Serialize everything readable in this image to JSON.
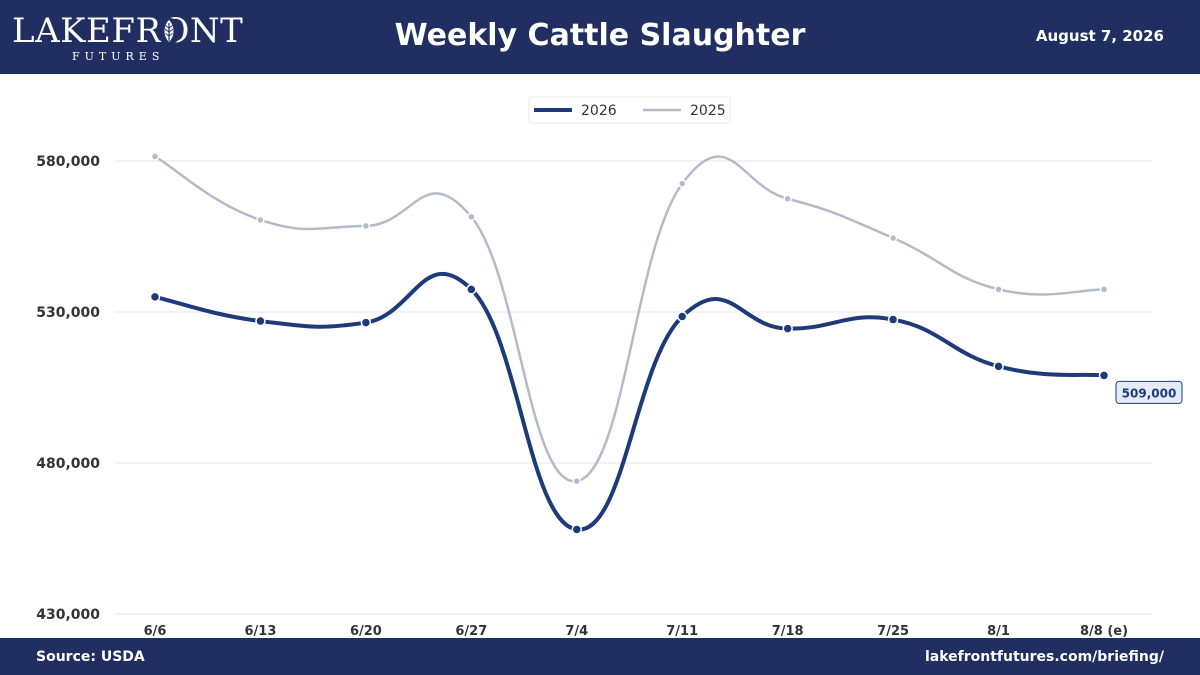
{
  "header": {
    "logo_main": "LAKEFRONT",
    "logo_sub": "FUTURES",
    "title": "Weekly Cattle Slaughter",
    "date": "August 7, 2026"
  },
  "footer": {
    "source": "Source: USDA",
    "site": "lakefrontfutures.com/briefing/"
  },
  "colors": {
    "navy": "#212e62",
    "series_2026": "#1e3a78",
    "series_2025": "#b4bac8"
  },
  "chart_data": {
    "type": "line",
    "title": "Weekly Cattle Slaughter",
    "categories": [
      "6/6",
      "6/13",
      "6/20",
      "6/27",
      "7/4",
      "7/11",
      "7/18",
      "7/25",
      "8/1",
      "8/8 (e)"
    ],
    "series": [
      {
        "name": "2026",
        "values": [
          535000,
          527000,
          526500,
          537500,
          458000,
          528500,
          524500,
          527500,
          512000,
          509000
        ]
      },
      {
        "name": "2025",
        "values": [
          581500,
          560500,
          558500,
          561500,
          474000,
          572500,
          567500,
          554500,
          537500,
          537500
        ]
      }
    ],
    "yticks": [
      "580,000",
      "530,000",
      "480,000",
      "430,000"
    ],
    "ytick_values": [
      580000,
      530000,
      480000,
      430000
    ],
    "ylim": [
      430000,
      580000
    ],
    "grid": true,
    "legend_position": "top-center",
    "end_label": "509,000"
  }
}
